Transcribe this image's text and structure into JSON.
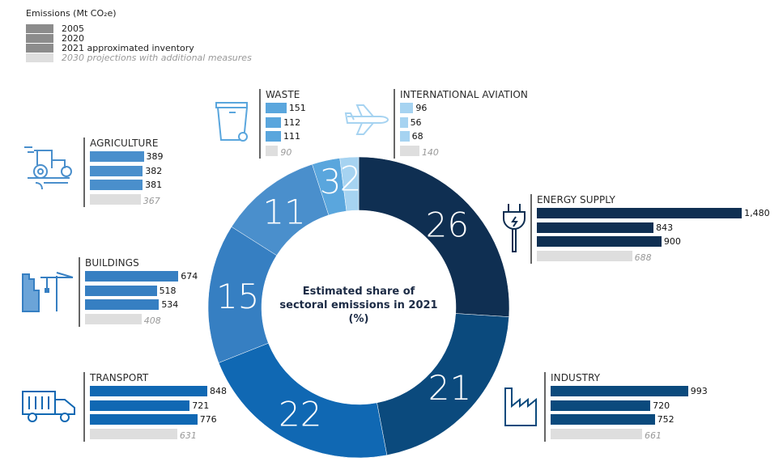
{
  "legend": {
    "title": "Emissions (Mt CO₂e)",
    "items": [
      {
        "label": "2005",
        "color": "#8c8c8c"
      },
      {
        "label": "2020",
        "color": "#8c8c8c"
      },
      {
        "label": "2021 approximated inventory",
        "color": "#8c8c8c"
      },
      {
        "label": "2030 projections with additional measures",
        "color": "#dedede"
      }
    ]
  },
  "center_label": {
    "line1": "Estimated share of",
    "line2": "sectoral emissions in 2021",
    "line3": "(%)"
  },
  "chart_data": {
    "type": "donut+bar",
    "unit": "Mt CO2e",
    "share_unit": "%",
    "series_names": [
      "2005",
      "2020",
      "2021 approximated inventory",
      "2030 projections with additional measures"
    ],
    "sectors": [
      {
        "name": "ENERGY SUPPLY",
        "share_2021": 26,
        "values": [
          1480,
          843,
          900
        ],
        "projection_2030": 688,
        "color": "#0f2f52",
        "icon": "plug-icon"
      },
      {
        "name": "INDUSTRY",
        "share_2021": 21,
        "values": [
          993,
          720,
          752
        ],
        "projection_2030": 661,
        "color": "#0b4a7d",
        "icon": "factory-icon"
      },
      {
        "name": "TRANSPORT",
        "share_2021": 22,
        "values": [
          848,
          721,
          776
        ],
        "projection_2030": 631,
        "color": "#1068b3",
        "icon": "truck-icon"
      },
      {
        "name": "BUILDINGS",
        "share_2021": 15,
        "values": [
          674,
          518,
          534
        ],
        "projection_2030": 408,
        "color": "#367fc2",
        "icon": "buildings-crane-icon"
      },
      {
        "name": "AGRICULTURE",
        "share_2021": 11,
        "values": [
          389,
          382,
          381
        ],
        "projection_2030": 367,
        "color": "#4a8fcc",
        "icon": "tractor-icon"
      },
      {
        "name": "WASTE",
        "share_2021": 3,
        "values": [
          151,
          112,
          111
        ],
        "projection_2030": 90,
        "color": "#5aa6dd",
        "icon": "waste-bin-icon"
      },
      {
        "name": "INTERNATIONAL AVIATION",
        "share_2021": 2,
        "values": [
          96,
          56,
          68
        ],
        "projection_2030": 140,
        "color": "#a6d3f1",
        "icon": "airplane-icon"
      }
    ],
    "projection_color": "#dedede"
  }
}
